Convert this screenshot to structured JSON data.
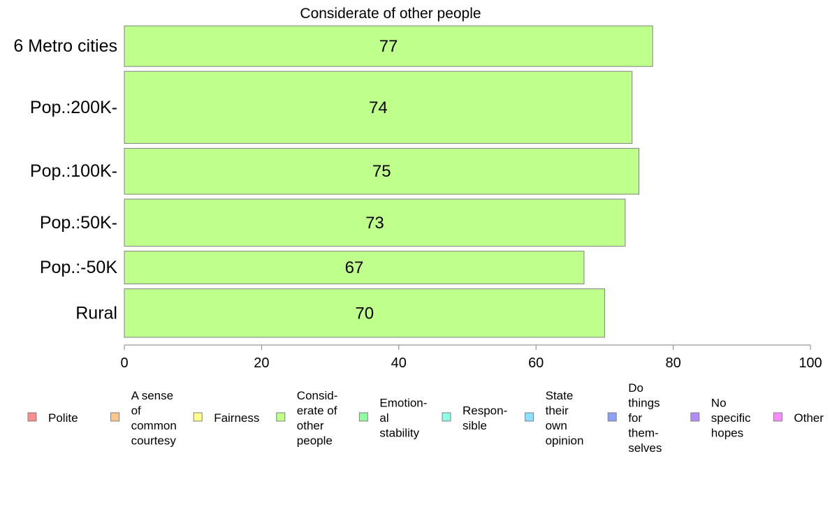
{
  "chart_data": {
    "type": "bar",
    "orientation": "horizontal",
    "title": "Considerate of other people",
    "xlabel": "",
    "ylabel": "",
    "xlim": [
      0,
      100
    ],
    "x_ticks": [
      "0",
      "20",
      "40",
      "60",
      "80",
      "100"
    ],
    "grid": false,
    "categories": [
      "6 Metro cities",
      "Pop.:200K-",
      "Pop.:100K-",
      "Pop.:50K-",
      "Pop.:-50K",
      "Rural"
    ],
    "values": [
      77,
      74,
      75,
      73,
      67,
      70
    ],
    "data_labels": [
      "77",
      "74",
      "75",
      "73",
      "67",
      "70"
    ],
    "relative_bar_thickness": [
      0.62,
      1.1,
      0.7,
      0.72,
      0.5,
      0.74
    ],
    "bar_color": "#BFFF8C",
    "bar_outline": "#808080",
    "legend_position": "bottom",
    "legend": [
      {
        "label": "Polite",
        "color": "#FF8C8C"
      },
      {
        "label": "A sense\nof\ncommon\ncourtesy",
        "color": "#FFC68C"
      },
      {
        "label": "Fairness",
        "color": "#FFFF8C"
      },
      {
        "label": "Consid-\nerate of\nother\npeople",
        "color": "#BFFF8C"
      },
      {
        "label": "Emotion-\nal\nstability",
        "color": "#8CFF9F"
      },
      {
        "label": "Respon-\nsible",
        "color": "#8CFFE5"
      },
      {
        "label": "State\ntheir\nown\nopinion",
        "color": "#8CDFFF"
      },
      {
        "label": "Do\nthings\nfor\nthem-\nselves",
        "color": "#8CA1FF"
      },
      {
        "label": "No\nspecific\nhopes",
        "color": "#B28CFF"
      },
      {
        "label": "Other",
        "color": "#F88CFF"
      }
    ]
  }
}
